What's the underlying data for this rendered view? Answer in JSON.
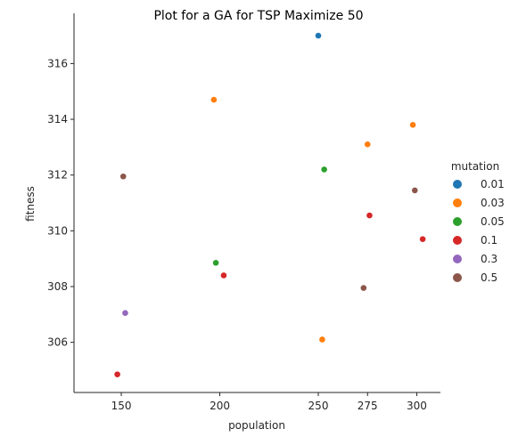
{
  "chart_data": {
    "type": "scatter",
    "title": "Plot for a GA for TSP Maximize 50",
    "xlabel": "population",
    "ylabel": "fitness",
    "xlim": [
      126,
      312
    ],
    "ylim": [
      304.2,
      317.8
    ],
    "x_ticks": [
      150,
      200,
      250,
      275,
      300
    ],
    "y_ticks": [
      306,
      308,
      310,
      312,
      314,
      316
    ],
    "grid": false,
    "legend": {
      "title": "mutation",
      "placement": "right",
      "entries": [
        {
          "label": "0.01",
          "color": "#1f77b4"
        },
        {
          "label": "0.03",
          "color": "#ff7f0e"
        },
        {
          "label": "0.05",
          "color": "#2ca02c"
        },
        {
          "label": "0.1",
          "color": "#d62728"
        },
        {
          "label": "0.3",
          "color": "#9467bd"
        },
        {
          "label": "0.5",
          "color": "#8c564b"
        }
      ]
    },
    "series": [
      {
        "name": "0.01",
        "color": "#1f77b4",
        "points": [
          {
            "x": 250,
            "y": 317.0
          }
        ]
      },
      {
        "name": "0.03",
        "color": "#ff7f0e",
        "points": [
          {
            "x": 197,
            "y": 314.7
          },
          {
            "x": 298,
            "y": 313.8
          },
          {
            "x": 275,
            "y": 313.1
          },
          {
            "x": 252,
            "y": 306.1
          }
        ]
      },
      {
        "name": "0.05",
        "color": "#2ca02c",
        "points": [
          {
            "x": 253,
            "y": 312.2
          },
          {
            "x": 198,
            "y": 308.85
          }
        ]
      },
      {
        "name": "0.1",
        "color": "#d62728",
        "points": [
          {
            "x": 276,
            "y": 310.55
          },
          {
            "x": 303,
            "y": 309.7
          },
          {
            "x": 202,
            "y": 308.4
          },
          {
            "x": 148,
            "y": 304.85
          }
        ]
      },
      {
        "name": "0.3",
        "color": "#9467bd",
        "points": [
          {
            "x": 152,
            "y": 307.05
          }
        ]
      },
      {
        "name": "0.5",
        "color": "#8c564b",
        "points": [
          {
            "x": 151,
            "y": 311.95
          },
          {
            "x": 299,
            "y": 311.45
          },
          {
            "x": 273,
            "y": 307.95
          }
        ]
      }
    ]
  }
}
